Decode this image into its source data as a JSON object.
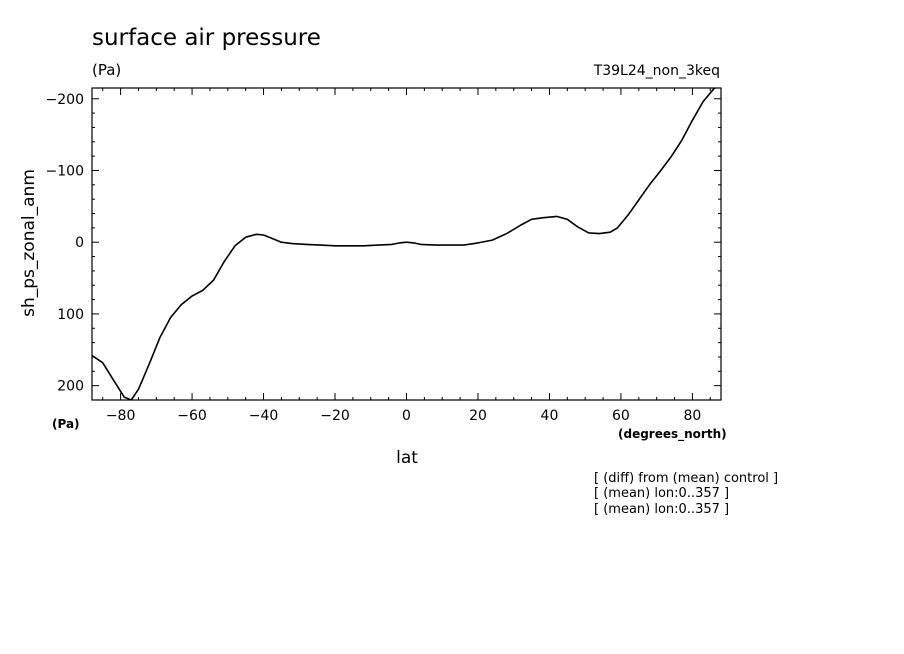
{
  "chart_data": {
    "type": "line",
    "title": "surface air pressure",
    "units": "(Pa)",
    "experiment": "T39L24_non_3keq",
    "xlabel": "lat",
    "ylabel": "sh_ps_zonal_anm",
    "x_unit_label": "(degrees_north)",
    "y_unit_label": "(Pa)",
    "xlim": [
      -88,
      88
    ],
    "ylim": [
      220,
      -215
    ],
    "y_axis_inverted": true,
    "xticks": [
      -80,
      -60,
      -40,
      -20,
      0,
      20,
      40,
      60,
      80
    ],
    "xtick_labels": [
      "−80",
      "−60",
      "−40",
      "−20",
      "0",
      "20",
      "40",
      "60",
      "80"
    ],
    "yticks": [
      -200,
      -100,
      0,
      100,
      200
    ],
    "ytick_labels": [
      "−200",
      "−100",
      "0",
      "100",
      "200"
    ],
    "grid": false,
    "series": [
      {
        "x": [
          -88,
          -85,
          -82,
          -79,
          -77,
          -75,
          -72,
          -69,
          -66,
          -63,
          -60,
          -57,
          -54,
          -51,
          -48,
          -45,
          -42,
          -40,
          -38,
          -35,
          -32,
          -28,
          -24,
          -20,
          -16,
          -12,
          -8,
          -4,
          -2,
          0,
          2,
          4,
          8,
          12,
          16,
          20,
          24,
          28,
          32,
          35,
          38,
          42,
          45,
          48,
          51,
          54,
          57,
          59,
          62,
          65,
          68,
          71,
          74,
          77,
          80,
          83,
          86,
          88
        ],
        "y": [
          158,
          168,
          192,
          216,
          220,
          205,
          170,
          133,
          105,
          87,
          75,
          67,
          53,
          27,
          5,
          -7,
          -11,
          -10,
          -6,
          0,
          2,
          3,
          4,
          5,
          5,
          5,
          4,
          3,
          1,
          0,
          1,
          3,
          4,
          4,
          4,
          1,
          -3,
          -12,
          -24,
          -32,
          -34,
          -36,
          -32,
          -21,
          -13,
          -12,
          -14,
          -20,
          -38,
          -59,
          -80,
          -99,
          -119,
          -142,
          -170,
          -196,
          -214,
          -220
        ]
      }
    ],
    "notes": [
      "[ (diff) from (mean) control ]",
      "[ (mean) lon:0..357 ]",
      "[ (mean) lon:0..357 ]"
    ]
  }
}
